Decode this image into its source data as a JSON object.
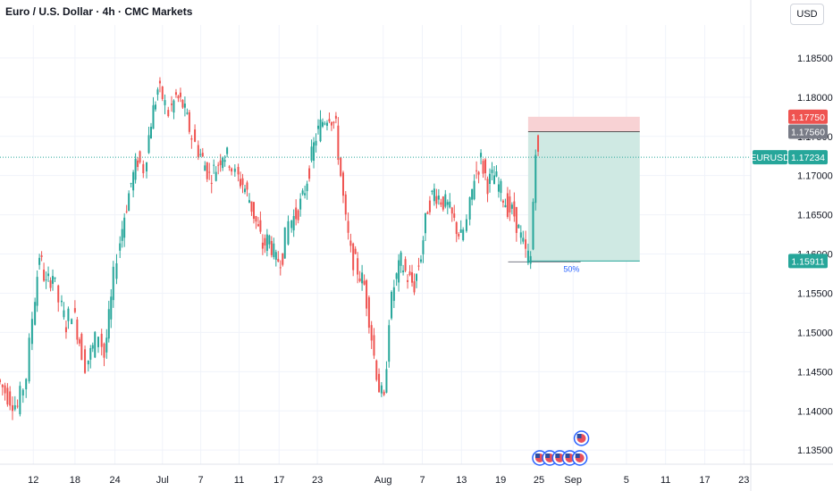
{
  "header": {
    "title": "Euro / U.S. Dollar · 4h · CMC Markets",
    "currency": "USD"
  },
  "colors": {
    "up": "#26a69a",
    "down": "#ef5350",
    "grid": "#f0f3fa",
    "axis_text": "#131722",
    "stop_zone": "#f8d2d4",
    "target_zone": "#cfe9e3",
    "price_line": "#26a69a"
  },
  "chart_data": {
    "type": "candlestick",
    "title": "",
    "xlabel": "",
    "ylabel": "",
    "ylim": [
      1.1332,
      1.1892
    ],
    "y_ticks": [
      "1.18500",
      "1.18000",
      "1.17500",
      "1.17000",
      "1.16500",
      "1.16000",
      "1.15500",
      "1.15000",
      "1.14500",
      "1.14000",
      "1.13500"
    ],
    "x_tick_labels": [
      {
        "label": "12",
        "x": 0.04
      },
      {
        "label": "18",
        "x": 0.09
      },
      {
        "label": "24",
        "x": 0.138
      },
      {
        "label": "Jul",
        "x": 0.195
      },
      {
        "label": "7",
        "x": 0.241
      },
      {
        "label": "11",
        "x": 0.287
      },
      {
        "label": "17",
        "x": 0.335
      },
      {
        "label": "23",
        "x": 0.381
      },
      {
        "label": "Aug",
        "x": 0.46
      },
      {
        "label": "7",
        "x": 0.507
      },
      {
        "label": "13",
        "x": 0.554
      },
      {
        "label": "19",
        "x": 0.601
      },
      {
        "label": "25",
        "x": 0.647
      },
      {
        "label": "Sep",
        "x": 0.688
      },
      {
        "label": "5",
        "x": 0.752
      },
      {
        "label": "11",
        "x": 0.799
      },
      {
        "label": "17",
        "x": 0.846
      },
      {
        "label": "23",
        "x": 0.893
      }
    ],
    "series": [
      {
        "name": "EURUSD",
        "path": [
          [
            0.0,
            1.144
          ],
          [
            0.012,
            1.142
          ],
          [
            0.024,
            1.1405
          ],
          [
            0.035,
            1.1445
          ],
          [
            0.042,
            1.152
          ],
          [
            0.05,
            1.16
          ],
          [
            0.058,
            1.156
          ],
          [
            0.066,
            1.1575
          ],
          [
            0.074,
            1.154
          ],
          [
            0.082,
            1.151
          ],
          [
            0.09,
            1.153
          ],
          [
            0.098,
            1.149
          ],
          [
            0.106,
            1.146
          ],
          [
            0.114,
            1.148
          ],
          [
            0.122,
            1.15
          ],
          [
            0.128,
            1.147
          ],
          [
            0.136,
            1.154
          ],
          [
            0.144,
            1.16
          ],
          [
            0.152,
            1.165
          ],
          [
            0.16,
            1.169
          ],
          [
            0.168,
            1.172
          ],
          [
            0.176,
            1.171
          ],
          [
            0.184,
            1.177
          ],
          [
            0.192,
            1.181
          ],
          [
            0.198,
            1.18
          ],
          [
            0.206,
            1.178
          ],
          [
            0.214,
            1.18
          ],
          [
            0.222,
            1.179
          ],
          [
            0.23,
            1.176
          ],
          [
            0.238,
            1.174
          ],
          [
            0.246,
            1.172
          ],
          [
            0.254,
            1.17
          ],
          [
            0.262,
            1.171
          ],
          [
            0.27,
            1.173
          ],
          [
            0.278,
            1.172
          ],
          [
            0.286,
            1.17
          ],
          [
            0.294,
            1.169
          ],
          [
            0.302,
            1.167
          ],
          [
            0.31,
            1.164
          ],
          [
            0.318,
            1.161
          ],
          [
            0.326,
            1.162
          ],
          [
            0.334,
            1.159
          ],
          [
            0.342,
            1.16
          ],
          [
            0.35,
            1.164
          ],
          [
            0.358,
            1.165
          ],
          [
            0.366,
            1.167
          ],
          [
            0.374,
            1.171
          ],
          [
            0.382,
            1.175
          ],
          [
            0.39,
            1.177
          ],
          [
            0.398,
            1.178
          ],
          [
            0.406,
            1.176
          ],
          [
            0.412,
            1.17
          ],
          [
            0.418,
            1.164
          ],
          [
            0.424,
            1.16
          ],
          [
            0.432,
            1.158
          ],
          [
            0.44,
            1.156
          ],
          [
            0.446,
            1.152
          ],
          [
            0.452,
            1.147
          ],
          [
            0.458,
            1.143
          ],
          [
            0.464,
            1.141
          ],
          [
            0.47,
            1.152
          ],
          [
            0.476,
            1.156
          ],
          [
            0.484,
            1.159
          ],
          [
            0.492,
            1.157
          ],
          [
            0.5,
            1.156
          ],
          [
            0.508,
            1.16
          ],
          [
            0.516,
            1.166
          ],
          [
            0.524,
            1.168
          ],
          [
            0.532,
            1.167
          ],
          [
            0.54,
            1.166
          ],
          [
            0.548,
            1.164
          ],
          [
            0.556,
            1.162
          ],
          [
            0.564,
            1.164
          ],
          [
            0.572,
            1.17
          ],
          [
            0.58,
            1.172
          ],
          [
            0.588,
            1.169
          ],
          [
            0.596,
            1.17
          ],
          [
            0.604,
            1.168
          ],
          [
            0.612,
            1.166
          ],
          [
            0.62,
            1.165
          ],
          [
            0.628,
            1.162
          ],
          [
            0.634,
            1.16
          ],
          [
            0.64,
            1.1595
          ],
          [
            0.646,
            1.174
          ],
          [
            0.65,
            1.1722
          ]
        ]
      }
    ],
    "position": {
      "stop_level": 1.1775,
      "target_level": 1.1756,
      "entry_level": 1.15911,
      "x_start": 0.634,
      "x_end": 0.768,
      "ratio_label": "50%"
    },
    "price_tags": [
      {
        "label": "1.17750",
        "value": 1.1775,
        "color": "#ef5350"
      },
      {
        "label": "1.17560",
        "value": 1.1756,
        "color": "#787b86"
      },
      {
        "label": "EURUSD",
        "value": 1.17234,
        "color": "#26a69a",
        "left": true
      },
      {
        "label": "1.17234",
        "value": 1.17234,
        "color": "#26a69a"
      },
      {
        "label": "1.15911",
        "value": 1.15911,
        "color": "#26a69a"
      }
    ],
    "last_price": 1.17234
  }
}
